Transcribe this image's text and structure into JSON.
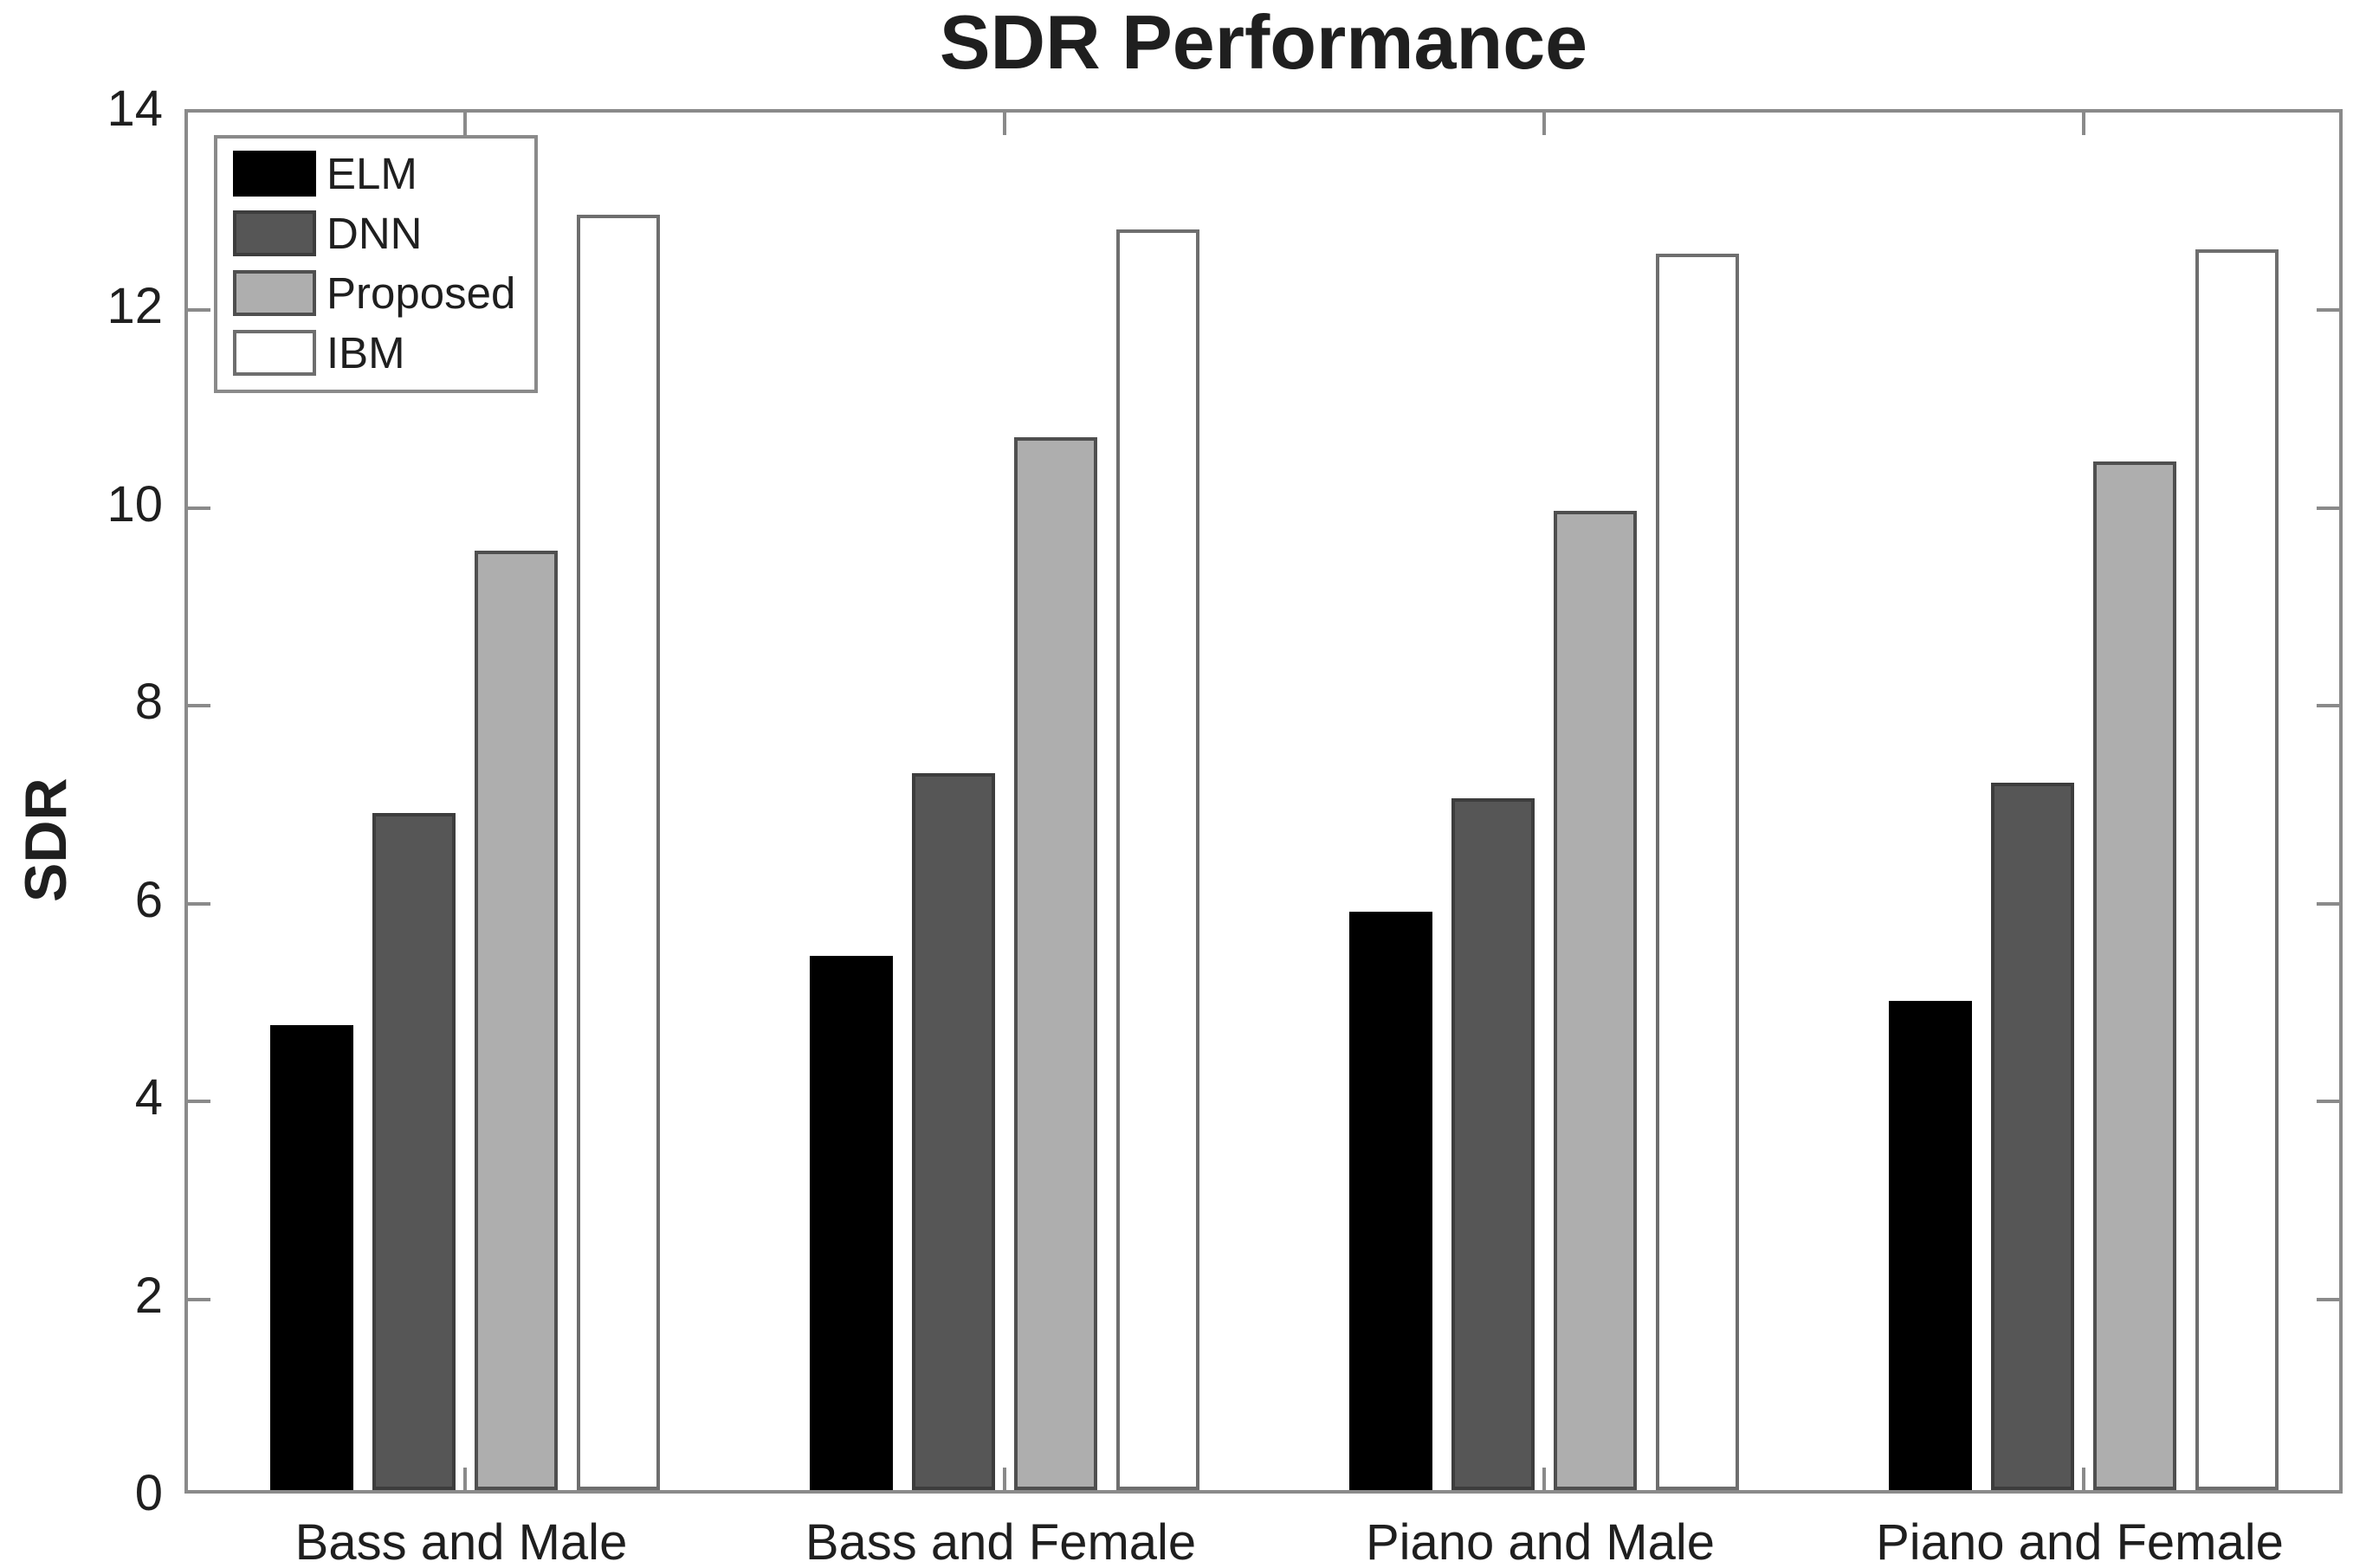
{
  "chart_data": {
    "type": "bar",
    "title": "SDR Performance",
    "ylabel": "SDR",
    "xlabel": "",
    "ylim": [
      0,
      14
    ],
    "yticks": [
      0,
      2,
      4,
      6,
      8,
      10,
      12,
      14
    ],
    "grid": false,
    "frame_color": "#8a8a8a",
    "text_color": "#1f1f1f",
    "background_color": "#ffffff",
    "categories": [
      "Bass and Male",
      "Bass and Female",
      "Piano and Male",
      "Piano and Female"
    ],
    "series": [
      {
        "name": "ELM",
        "color": "#000000",
        "edge_color": "#000000",
        "values": [
          4.7,
          5.4,
          5.85,
          4.95
        ]
      },
      {
        "name": "DNN",
        "color": "#565656",
        "edge_color": "#3d3d3d",
        "values": [
          6.85,
          7.25,
          7.0,
          7.15
        ]
      },
      {
        "name": "Proposed",
        "color": "#aeaeae",
        "edge_color": "#4f4f4f",
        "values": [
          9.5,
          10.65,
          9.9,
          10.4
        ]
      },
      {
        "name": "IBM",
        "color": "#ffffff",
        "edge_color": "#6e6e6e",
        "values": [
          12.9,
          12.75,
          12.5,
          12.55
        ]
      }
    ],
    "legend": {
      "position": "top-left",
      "entries": [
        "ELM",
        "DNN",
        "Proposed",
        "IBM"
      ]
    }
  }
}
